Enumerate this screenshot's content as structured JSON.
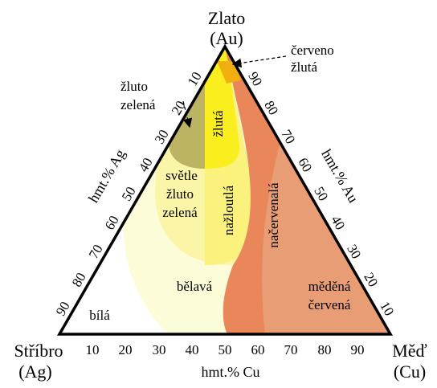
{
  "corners": {
    "top_name": "Zlato",
    "top_symbol": "(Au)",
    "left_name": "Stříbro",
    "left_symbol": "(Ag)",
    "right_name": "Měď",
    "right_symbol": "(Cu)"
  },
  "axes": {
    "cu_title": "hmt.% Cu",
    "ag_title": "hmt.% Ag",
    "au_title": "hmt.% Au",
    "cu_ticks": [
      "10",
      "20",
      "30",
      "40",
      "50",
      "60",
      "70",
      "80",
      "90"
    ],
    "ag_ticks": [
      "10",
      "20",
      "30",
      "40",
      "50",
      "60",
      "70",
      "80",
      "90"
    ],
    "au_ticks": [
      "10",
      "20",
      "30",
      "40",
      "50",
      "60",
      "70",
      "80",
      "90"
    ]
  },
  "regions": {
    "cerveno_l1": "červeno",
    "cerveno_l2": "žlutá",
    "zluto_zelena_l1": "žluto",
    "zluto_zelena_l2": "zelená",
    "zluta": "žlutá",
    "svetle_l1": "světle",
    "svetle_l2": "žluto",
    "svetle_l3": "zelená",
    "nazloutla": "nažloutlá",
    "nacervenala": "načervenalá",
    "belava": "bělavá",
    "bila": "bílá",
    "medena_l1": "měděná",
    "medena_l2": "červená"
  },
  "colors": {
    "white": "#ffffff",
    "pale_cream": "#fdfcd8",
    "light_yellow": "#fbf5a8",
    "pale_yellow": "#fbf27d",
    "yellow": "#fbee1e",
    "olive": "#bdb463",
    "orange": "#e9875a",
    "copper": "#e89d74",
    "red_yellow": "#f2b010",
    "outline": "#000000"
  }
}
